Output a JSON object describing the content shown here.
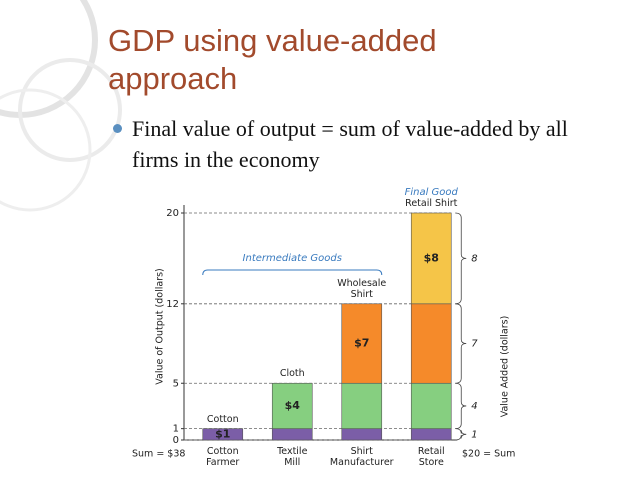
{
  "slide": {
    "title": "GDP using value-added approach",
    "bullet": "Final value of output = sum of value-added by all firms in the economy"
  },
  "chart_data": {
    "type": "stacked_bar",
    "categories": [
      "Cotton Farmer",
      "Textile Mill",
      "Shirt Manufacturer",
      "Retail Store"
    ],
    "bar_labels": [
      "Cotton",
      "Cloth",
      "Wholesale Shirt",
      "Retail Shirt"
    ],
    "series": [
      {
        "color": "#7b5ea7",
        "values": [
          1,
          1,
          1,
          1
        ],
        "value_labels": [
          "$1",
          null,
          null,
          null
        ]
      },
      {
        "color": "#86cf80",
        "values": [
          null,
          4,
          4,
          4
        ],
        "value_labels": [
          null,
          "$4",
          null,
          null
        ]
      },
      {
        "color": "#f58a2a",
        "values": [
          null,
          null,
          7,
          7
        ],
        "value_labels": [
          null,
          null,
          "$7",
          null
        ]
      },
      {
        "color": "#f5c548",
        "values": [
          null,
          null,
          null,
          8
        ],
        "value_labels": [
          null,
          null,
          null,
          "$8"
        ]
      }
    ],
    "ylim": [
      0,
      20
    ],
    "yticks": [
      0,
      1,
      5,
      12,
      20
    ],
    "grid": true,
    "y_label": "Value of Output (dollars)",
    "y2_label": "Value Added (dollars)",
    "intermediate_label": "Intermediate Goods",
    "final_label": "Final Good",
    "sum_left": "Sum = $38",
    "sum_right": "$20 = Sum"
  }
}
